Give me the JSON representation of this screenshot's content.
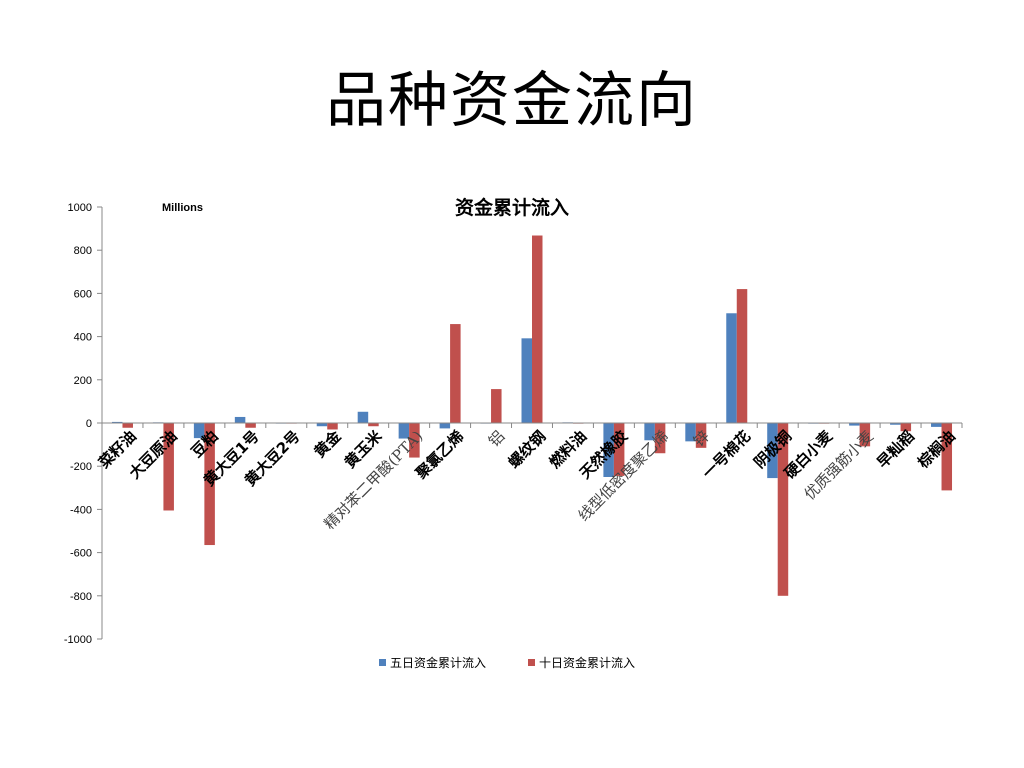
{
  "slide": {
    "title": "品种资金流向"
  },
  "chart_data": {
    "type": "bar",
    "title": "资金累计流入",
    "unit_label": "Millions",
    "xlabel": "",
    "ylabel": "",
    "ylim": [
      -1000,
      1000
    ],
    "yticks": [
      1000,
      800,
      600,
      400,
      200,
      0,
      -200,
      -400,
      -600,
      -800,
      -1000
    ],
    "categories": [
      "菜籽油",
      "大豆原油",
      "豆粕",
      "黄大豆1号",
      "黄大豆2号",
      "黄金",
      "黄玉米",
      "精对苯二甲酸(PTA)",
      "聚氯乙烯",
      "铝",
      "螺纹钢",
      "燃料油",
      "天然橡胶",
      "线型低密度聚乙烯",
      "锌",
      "一号棉花",
      "阴极铜",
      "硬白小麦",
      "优质强筋小麦",
      "早籼稻",
      "棕榈油"
    ],
    "thin_label_categories": [
      "精对苯二甲酸(PTA)",
      "铝",
      "线型低密度聚乙烯",
      "锌",
      "优质强筋小麦"
    ],
    "series": [
      {
        "name": "五日资金累计流入",
        "color": "#4F81BD",
        "values": [
          5,
          3,
          -70,
          28,
          0,
          -15,
          52,
          -72,
          -25,
          0,
          392,
          3,
          -250,
          -80,
          -85,
          508,
          -255,
          -3,
          -12,
          -8,
          -18
        ]
      },
      {
        "name": "十日资金累计流入",
        "color": "#C0504D",
        "values": [
          -22,
          -405,
          -565,
          -22,
          0,
          -30,
          -15,
          -160,
          458,
          157,
          868,
          -3,
          -245,
          -140,
          -115,
          620,
          -800,
          -3,
          -108,
          -38,
          -312
        ]
      }
    ],
    "grid": false,
    "legend_position": "bottom"
  }
}
